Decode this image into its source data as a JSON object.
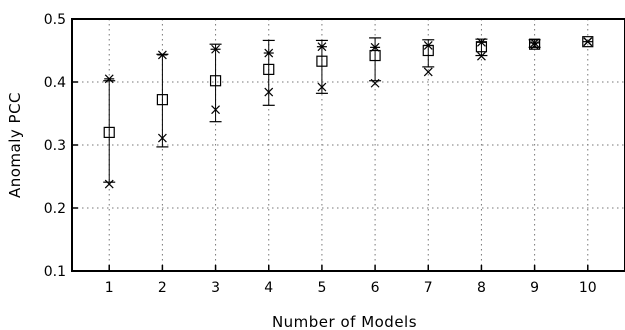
{
  "chart_data": {
    "type": "scatter",
    "title": "",
    "xlabel": "Number of Models",
    "ylabel": "Anomaly PCC",
    "x": [
      1,
      2,
      3,
      4,
      5,
      6,
      7,
      8,
      9,
      10
    ],
    "xlim": [
      0.3,
      10.7
    ],
    "ylim": [
      0.1,
      0.5
    ],
    "xticks": [
      1,
      2,
      3,
      4,
      5,
      6,
      7,
      8,
      9,
      10
    ],
    "yticks": [
      0.1,
      0.2,
      0.3,
      0.4,
      0.5
    ],
    "ytick_labels": [
      "0.1",
      "0.2",
      "0.3",
      "0.4",
      "0.5"
    ],
    "grid": true,
    "series": [
      {
        "marker": "square",
        "values": [
          0.32,
          0.372,
          0.402,
          0.42,
          0.433,
          0.442,
          0.45,
          0.456,
          0.46,
          0.464
        ]
      },
      {
        "marker": "asterisk",
        "values": [
          0.405,
          0.443,
          0.452,
          0.446,
          0.456,
          0.455,
          0.458,
          0.463,
          0.462,
          0.464
        ]
      },
      {
        "marker": "cross",
        "values": [
          0.238,
          0.311,
          0.356,
          0.384,
          0.392,
          0.398,
          0.416,
          0.441,
          0.458,
          0.464
        ]
      }
    ],
    "error_bars": {
      "lower": [
        0.241,
        0.297,
        0.337,
        0.363,
        0.382,
        0.402,
        0.424,
        0.442,
        0.455,
        0.464
      ],
      "upper": [
        0.402,
        0.444,
        0.46,
        0.466,
        0.466,
        0.47,
        0.467,
        0.468,
        0.467,
        0.464
      ]
    }
  }
}
